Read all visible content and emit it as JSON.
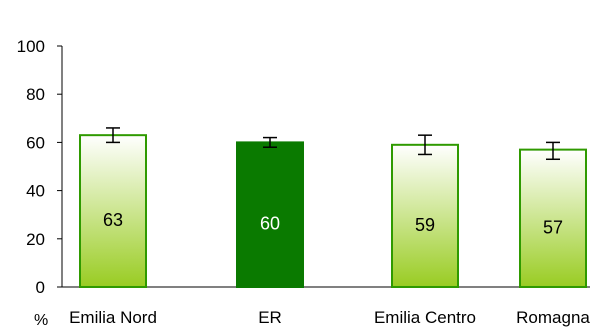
{
  "chart_data": {
    "type": "bar",
    "categories": [
      "Emilia Nord",
      "ER",
      "Emilia Centro",
      "Romagna"
    ],
    "values": [
      63,
      60,
      59,
      57
    ],
    "data_labels": [
      "63",
      "60",
      "59",
      "57"
    ],
    "error_bars": [
      {
        "low": 60,
        "high": 66
      },
      {
        "low": 58,
        "high": 62
      },
      {
        "low": 55,
        "high": 63
      },
      {
        "low": 53,
        "high": 60
      }
    ],
    "highlight_category": "ER",
    "ylim": [
      0,
      100
    ],
    "yticks": [
      "0",
      "20",
      "40",
      "60",
      "80",
      "100"
    ],
    "ylabel": "%",
    "xlabel": "",
    "title": "",
    "grid": false,
    "legend": "none",
    "colors": {
      "outline": "#2f9a00",
      "gradient_top": "#ffffff",
      "gradient_bottom": "#99cc22",
      "highlight_fill": "#0a7a00",
      "axis": "#000000",
      "error_bar": "#000000",
      "label_dark": "#000000",
      "label_light": "#ffffff"
    }
  }
}
